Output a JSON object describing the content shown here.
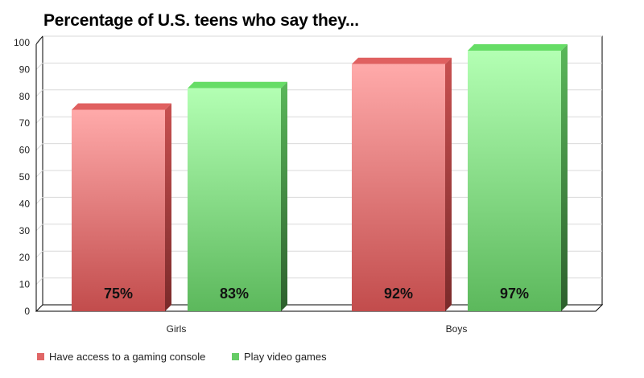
{
  "chart_data": {
    "type": "bar",
    "title": "Percentage of U.S. teens who say they...",
    "categories": [
      "Girls",
      "Boys"
    ],
    "series": [
      {
        "name": "Have access to a gaming console",
        "values": [
          75,
          92
        ],
        "labels": [
          "75%",
          "92%"
        ],
        "color": "#e06666",
        "top_color": "#ffaaaa",
        "side_color": "#c24040"
      },
      {
        "name": "Play video games",
        "values": [
          83,
          97
        ],
        "labels": [
          "83%",
          "97%"
        ],
        "color": "#66cc66",
        "top_color": "#b3ffb3",
        "side_color": "#3fa03f"
      }
    ],
    "ylim": [
      0,
      100
    ],
    "yticks": [
      "0",
      "10",
      "20",
      "30",
      "40",
      "50",
      "60",
      "70",
      "80",
      "90",
      "100"
    ],
    "grid": true,
    "legend_position": "bottom-left"
  }
}
